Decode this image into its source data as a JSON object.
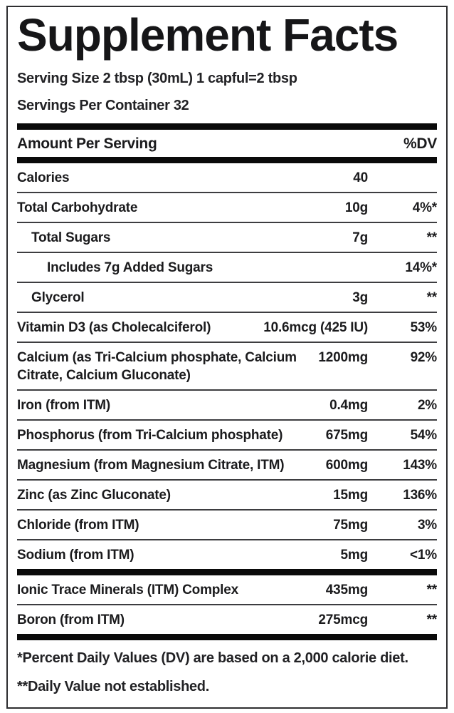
{
  "label": {
    "title": "Supplement Facts",
    "serving_size": "Serving Size 2 tbsp (30mL) 1 capful=2 tbsp",
    "servings_per_container": "Servings Per Container 32",
    "header": {
      "amount_label": "Amount Per Serving",
      "dv_label": "%DV"
    },
    "rows": [
      {
        "name": "Calories",
        "amount": "40",
        "dv": "",
        "indent": 0
      },
      {
        "name": "Total Carbohydrate",
        "amount": "10g",
        "dv": "4%*",
        "indent": 0
      },
      {
        "name": "Total Sugars",
        "amount": "7g",
        "dv": "**",
        "indent": 1
      },
      {
        "name": "Includes 7g Added Sugars",
        "amount": "",
        "dv": "14%*",
        "indent": 2
      },
      {
        "name": "Glycerol",
        "amount": "3g",
        "dv": "**",
        "indent": 1
      },
      {
        "name": "Vitamin D3 (as Cholecalciferol)",
        "amount": "10.6mcg (425 IU)",
        "dv": "53%",
        "indent": 0
      },
      {
        "name": "Calcium (as Tri-Calcium phosphate, Calcium Citrate, Calcium Gluconate)",
        "amount": "1200mg",
        "dv": "92%",
        "indent": 0
      },
      {
        "name": "Iron (from ITM)",
        "amount": "0.4mg",
        "dv": "2%",
        "indent": 0
      },
      {
        "name": "Phosphorus (from Tri-Calcium phosphate)",
        "amount": "675mg",
        "dv": "54%",
        "indent": 0
      },
      {
        "name": "Magnesium (from Magnesium Citrate, ITM)",
        "amount": "600mg",
        "dv": "143%",
        "indent": 0
      },
      {
        "name": "Zinc (as Zinc Gluconate)",
        "amount": "15mg",
        "dv": "136%",
        "indent": 0
      },
      {
        "name": "Chloride (from ITM)",
        "amount": "75mg",
        "dv": "3%",
        "indent": 0
      },
      {
        "name": "Sodium (from ITM)",
        "amount": "5mg",
        "dv": "<1%",
        "indent": 0
      }
    ],
    "secondary_rows": [
      {
        "name": "Ionic Trace Minerals (ITM) Complex",
        "amount": "435mg",
        "dv": "**",
        "indent": 0
      },
      {
        "name": "Boron (from ITM)",
        "amount": "275mcg",
        "dv": "**",
        "indent": 0
      }
    ],
    "footnotes": [
      "*Percent Daily Values (DV) are based on a 2,000 calorie diet.",
      "**Daily Value not established."
    ],
    "colors": {
      "text": "#1b1b1d",
      "rule_thin": "#3d3d40",
      "rule_thick": "#0a0a0a",
      "border": "#2e2e30",
      "background": "#ffffff"
    }
  }
}
